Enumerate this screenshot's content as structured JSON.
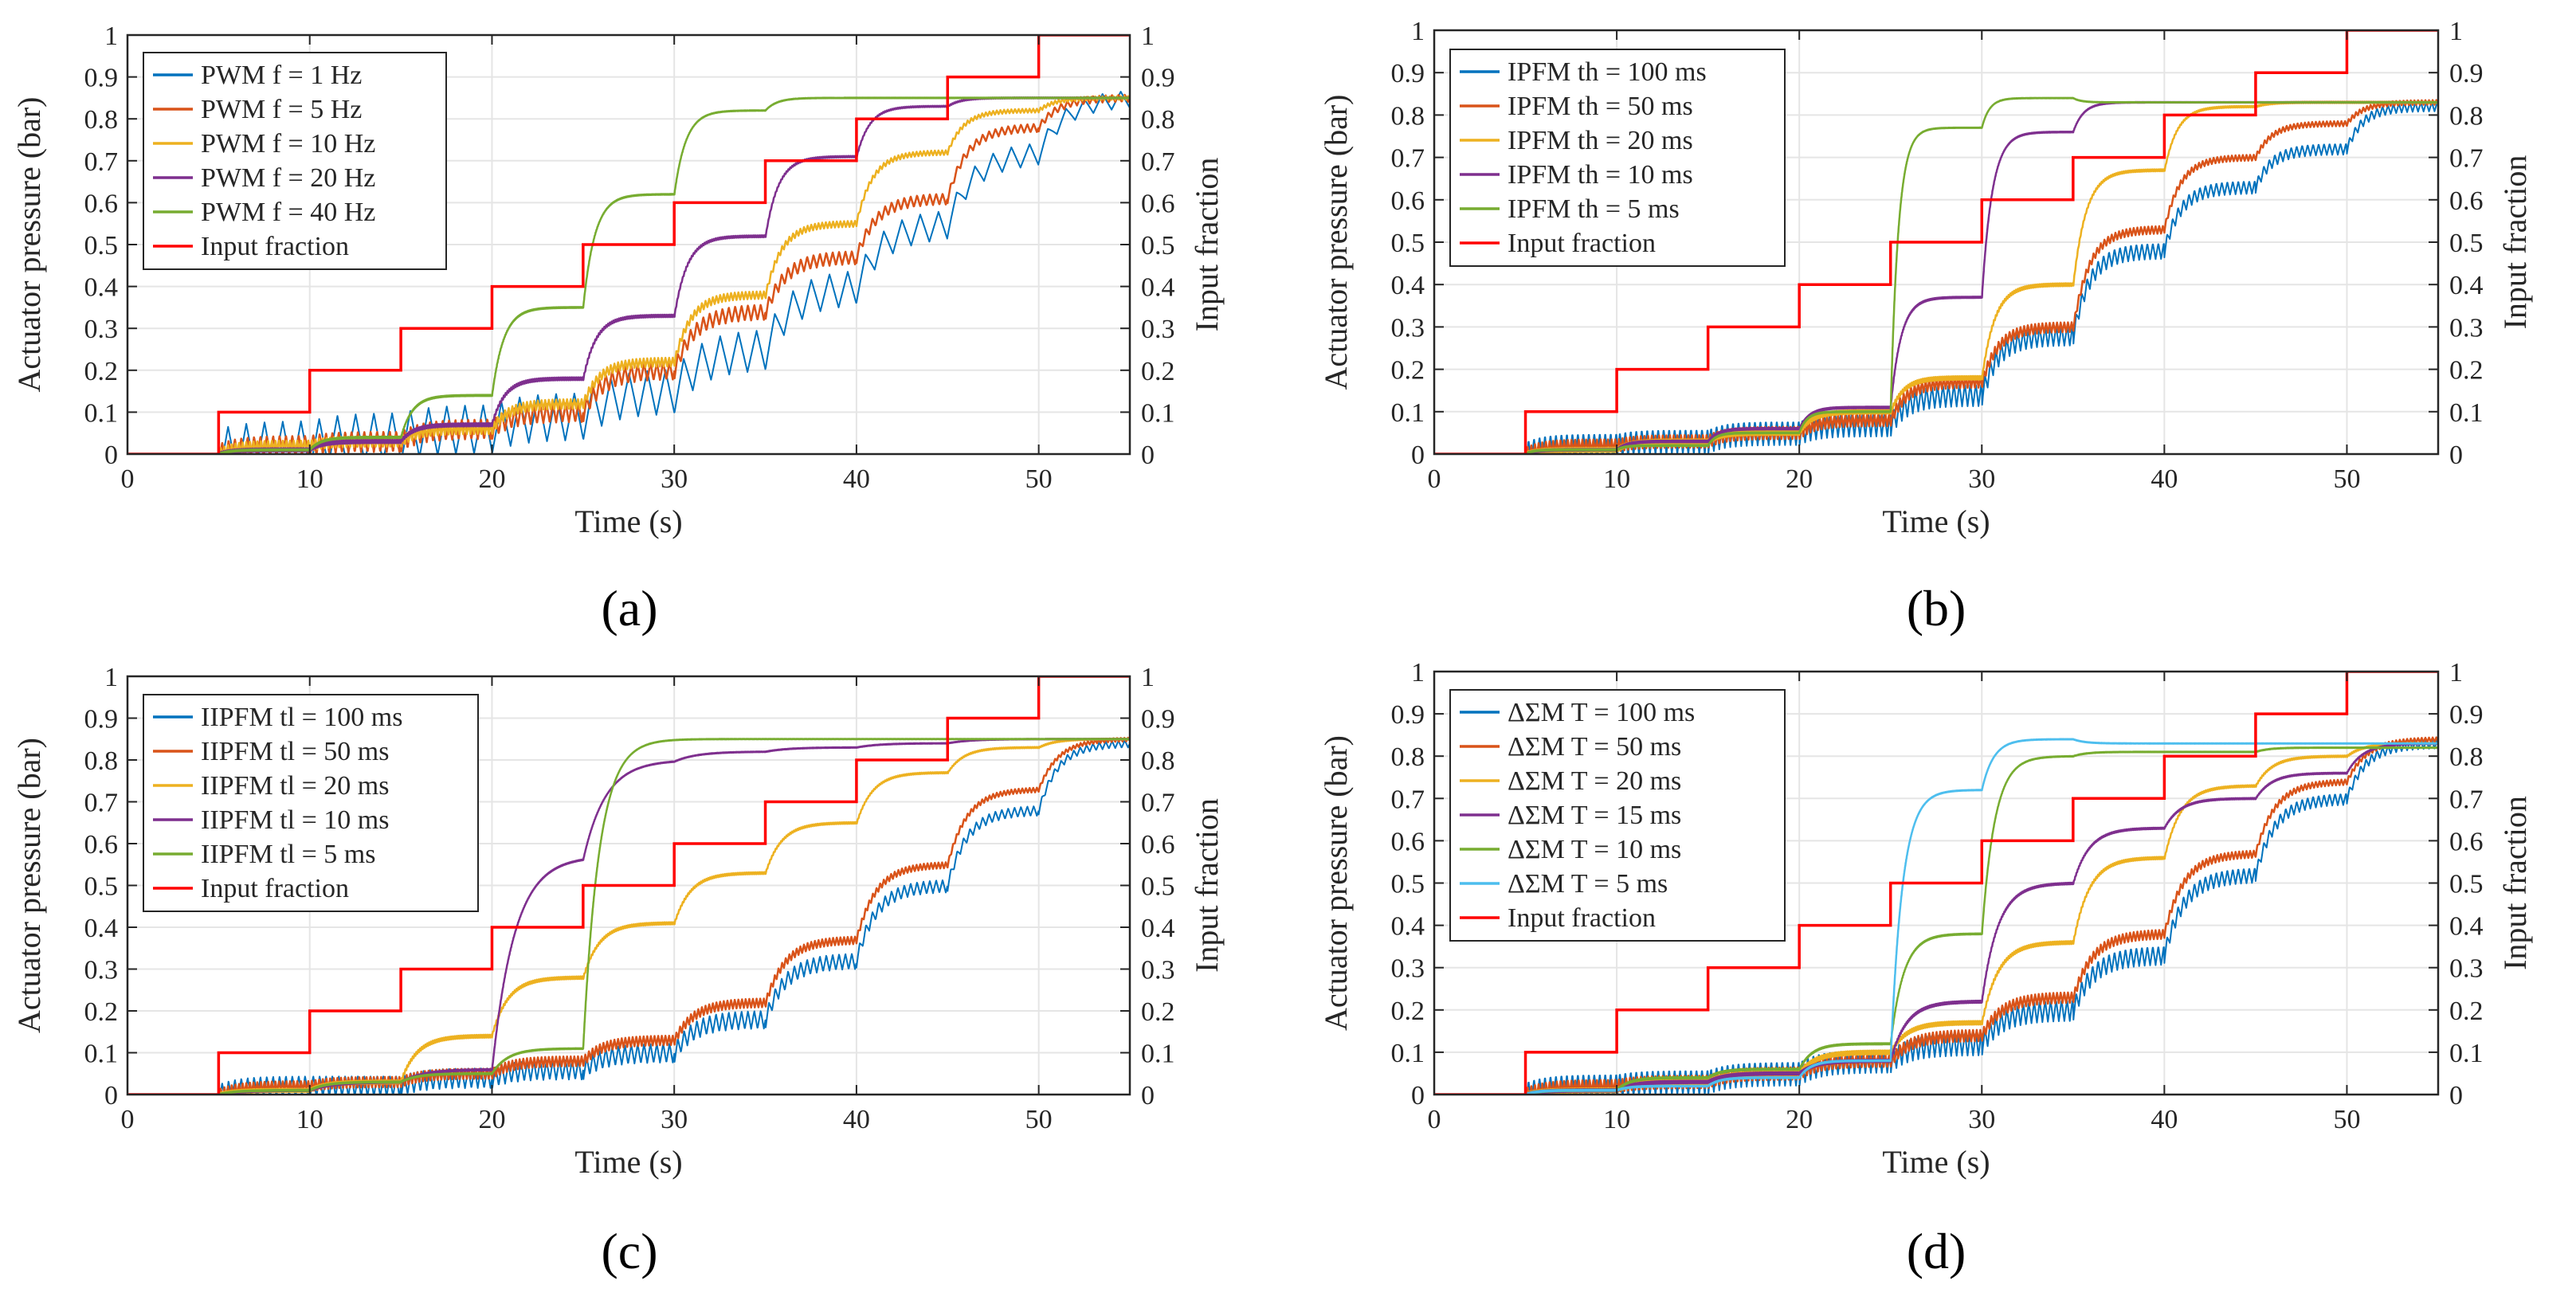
{
  "colors": {
    "blue": "#0072BD",
    "orange": "#D95319",
    "yellow": "#EDB120",
    "purple": "#7E2F8E",
    "green": "#77AC30",
    "cyan": "#4DBEEE",
    "red": "#FF0000",
    "grid": "#E5E5E5",
    "axis": "#262626"
  },
  "chart_data": [
    {
      "type": "line",
      "panel": "a",
      "panel_label": "(a)",
      "xlabel": "Time (s)",
      "ylabel": "Actuator pressure (bar)",
      "y2label": "Input fraction",
      "xlim": [
        0,
        55
      ],
      "ylim": [
        0,
        1
      ],
      "y2lim": [
        0,
        1
      ],
      "xticks": [
        "0",
        "10",
        "20",
        "30",
        "40",
        "50"
      ],
      "yticks": [
        "0",
        "0.1",
        "0.2",
        "0.3",
        "0.4",
        "0.5",
        "0.6",
        "0.7",
        "0.8",
        "0.9",
        "1"
      ],
      "input_steps": [
        0,
        0.1,
        0.2,
        0.3,
        0.4,
        0.5,
        0.6,
        0.7,
        0.8,
        0.9,
        1.0
      ],
      "step_times": [
        5,
        10,
        15,
        20,
        25,
        30,
        35,
        40,
        45,
        50
      ],
      "series": [
        {
          "name": "PWM f =  1 Hz",
          "color": "blue",
          "tau": 4.0,
          "levels": [
            0.02,
            0.04,
            0.06,
            0.09,
            0.15,
            0.25,
            0.4,
            0.55,
            0.72,
            0.85
          ],
          "ripple": 0.12,
          "period": 1.0
        },
        {
          "name": "PWM f =  5 Hz",
          "color": "orange",
          "tau": 3.0,
          "levels": [
            0.02,
            0.03,
            0.06,
            0.1,
            0.2,
            0.34,
            0.47,
            0.61,
            0.78,
            0.85
          ],
          "ripple": 0.05,
          "period": 0.35
        },
        {
          "name": "PWM f = 10 Hz",
          "color": "yellow",
          "tau": 2.5,
          "levels": [
            0.02,
            0.03,
            0.06,
            0.12,
            0.22,
            0.38,
            0.55,
            0.72,
            0.82,
            0.85
          ],
          "ripple": 0.025,
          "period": 0.2
        },
        {
          "name": "PWM f = 20 Hz",
          "color": "purple",
          "tau": 2.0,
          "levels": [
            0.01,
            0.03,
            0.07,
            0.18,
            0.33,
            0.52,
            0.71,
            0.83,
            0.85,
            0.85
          ],
          "ripple": 0.008,
          "period": 0.1
        },
        {
          "name": "PWM f = 40 Hz",
          "color": "green",
          "tau": 1.8,
          "levels": [
            0.01,
            0.04,
            0.14,
            0.35,
            0.62,
            0.82,
            0.85,
            0.85,
            0.85,
            0.85
          ],
          "ripple": 0.003,
          "period": 0.05
        }
      ],
      "input_label": "Input fraction"
    },
    {
      "type": "line",
      "panel": "b",
      "panel_label": "(b)",
      "xlabel": "Time (s)",
      "ylabel": "Actuator pressure (bar)",
      "y2label": "Input fraction",
      "xlim": [
        0,
        55
      ],
      "ylim": [
        0,
        1
      ],
      "y2lim": [
        0,
        1
      ],
      "xticks": [
        "0",
        "10",
        "20",
        "30",
        "40",
        "50"
      ],
      "yticks": [
        "0",
        "0.1",
        "0.2",
        "0.3",
        "0.4",
        "0.5",
        "0.6",
        "0.7",
        "0.8",
        "0.9",
        "1"
      ],
      "input_steps": [
        0,
        0.1,
        0.2,
        0.3,
        0.4,
        0.5,
        0.6,
        0.7,
        0.8,
        0.9,
        1.0
      ],
      "step_times": [
        5,
        10,
        15,
        20,
        25,
        30,
        35,
        40,
        45,
        50
      ],
      "series": [
        {
          "name": "IPFM th = 100 ms",
          "color": "blue",
          "tau": 2.5,
          "levels": [
            0.02,
            0.03,
            0.05,
            0.07,
            0.14,
            0.28,
            0.48,
            0.63,
            0.72,
            0.82
          ],
          "ripple": 0.06,
          "period": 0.3
        },
        {
          "name": "IPFM th =  50 ms",
          "color": "orange",
          "tau": 2.5,
          "levels": [
            0.02,
            0.03,
            0.05,
            0.08,
            0.17,
            0.3,
            0.53,
            0.7,
            0.78,
            0.83
          ],
          "ripple": 0.03,
          "period": 0.2
        },
        {
          "name": "IPFM th =  20 ms",
          "color": "yellow",
          "tau": 2.0,
          "levels": [
            0.01,
            0.03,
            0.05,
            0.1,
            0.18,
            0.4,
            0.67,
            0.82,
            0.83,
            0.83
          ],
          "ripple": 0.01,
          "period": 0.1
        },
        {
          "name": "IPFM th =  10 ms",
          "color": "purple",
          "tau": 1.6,
          "levels": [
            0.01,
            0.03,
            0.06,
            0.11,
            0.37,
            0.76,
            0.83,
            0.83,
            0.83,
            0.83
          ],
          "ripple": 0.004,
          "period": 0.05
        },
        {
          "name": "IPFM th =   5 ms",
          "color": "green",
          "tau": 1.2,
          "levels": [
            0.01,
            0.02,
            0.05,
            0.1,
            0.77,
            0.84,
            0.83,
            0.83,
            0.83,
            0.83
          ],
          "ripple": 0.002,
          "period": 0.03
        }
      ],
      "input_label": "Input fraction"
    },
    {
      "type": "line",
      "panel": "c",
      "panel_label": "(c)",
      "xlabel": "Time (s)",
      "ylabel": "Actuator pressure (bar)",
      "y2label": "Input fraction",
      "xlim": [
        0,
        55
      ],
      "ylim": [
        0,
        1
      ],
      "y2lim": [
        0,
        1
      ],
      "xticks": [
        "0",
        "10",
        "20",
        "30",
        "40",
        "50"
      ],
      "yticks": [
        "0",
        "0.1",
        "0.2",
        "0.3",
        "0.4",
        "0.5",
        "0.6",
        "0.7",
        "0.8",
        "0.9",
        "1"
      ],
      "input_steps": [
        0,
        0.1,
        0.2,
        0.3,
        0.4,
        0.5,
        0.6,
        0.7,
        0.8,
        0.9,
        1.0
      ],
      "step_times": [
        5,
        10,
        15,
        20,
        25,
        30,
        35,
        40,
        45,
        50
      ],
      "series": [
        {
          "name": "IIPFM tl = 100 ms",
          "color": "blue",
          "tau": 3.0,
          "levels": [
            0.02,
            0.02,
            0.04,
            0.06,
            0.1,
            0.18,
            0.32,
            0.5,
            0.68,
            0.84
          ],
          "ripple": 0.05,
          "period": 0.35
        },
        {
          "name": "IIPFM tl =  50 ms",
          "color": "orange",
          "tau": 3.0,
          "levels": [
            0.02,
            0.03,
            0.05,
            0.08,
            0.13,
            0.22,
            0.37,
            0.55,
            0.73,
            0.85
          ],
          "ripple": 0.025,
          "period": 0.2
        },
        {
          "name": "IIPFM tl =  20 ms",
          "color": "yellow",
          "tau": 2.5,
          "levels": [
            0.01,
            0.03,
            0.14,
            0.28,
            0.41,
            0.53,
            0.65,
            0.77,
            0.83,
            0.85
          ],
          "ripple": 0.008,
          "period": 0.1
        },
        {
          "name": "IIPFM tl =  10 ms",
          "color": "purple",
          "tau": 3.5,
          "levels": [
            0.01,
            0.03,
            0.06,
            0.57,
            0.8,
            0.82,
            0.83,
            0.84,
            0.85,
            0.85
          ],
          "ripple": 0.003,
          "period": 0.05
        },
        {
          "name": "IIPFM tl =   5 ms",
          "color": "green",
          "tau": 2.5,
          "levels": [
            0.01,
            0.03,
            0.05,
            0.11,
            0.85,
            0.85,
            0.85,
            0.85,
            0.85,
            0.85
          ],
          "ripple": 0.002,
          "period": 0.03
        }
      ],
      "input_label": "Input fraction"
    },
    {
      "type": "line",
      "panel": "d",
      "panel_label": "(d)",
      "xlabel": "Time (s)",
      "ylabel": "Actuator pressure (bar)",
      "y2label": "Input fraction",
      "xlim": [
        0,
        55
      ],
      "ylim": [
        0,
        1
      ],
      "y2lim": [
        0,
        1
      ],
      "xticks": [
        "0",
        "10",
        "20",
        "30",
        "40",
        "50"
      ],
      "yticks": [
        "0",
        "0.1",
        "0.2",
        "0.3",
        "0.4",
        "0.5",
        "0.6",
        "0.7",
        "0.8",
        "0.9",
        "1"
      ],
      "input_steps": [
        0,
        0.1,
        0.2,
        0.3,
        0.4,
        0.5,
        0.6,
        0.7,
        0.8,
        0.9,
        1.0
      ],
      "step_times": [
        5,
        10,
        15,
        20,
        25,
        30,
        35,
        40,
        45,
        50
      ],
      "series": [
        {
          "name": "ΔΣM T = 100 ms",
          "color": "blue",
          "tau": 3.0,
          "levels": [
            0.02,
            0.03,
            0.05,
            0.08,
            0.12,
            0.2,
            0.33,
            0.52,
            0.7,
            0.83
          ],
          "ripple": 0.06,
          "period": 0.3
        },
        {
          "name": "ΔΣM T =  50 ms",
          "color": "orange",
          "tau": 3.0,
          "levels": [
            0.02,
            0.03,
            0.05,
            0.08,
            0.14,
            0.23,
            0.38,
            0.57,
            0.74,
            0.84
          ],
          "ripple": 0.03,
          "period": 0.2
        },
        {
          "name": "ΔΣM T =  20 ms",
          "color": "yellow",
          "tau": 2.5,
          "levels": [
            0.01,
            0.03,
            0.05,
            0.1,
            0.17,
            0.36,
            0.56,
            0.73,
            0.8,
            0.83
          ],
          "ripple": 0.01,
          "period": 0.1
        },
        {
          "name": "ΔΣM T =  15 ms",
          "color": "purple",
          "tau": 2.5,
          "levels": [
            0.01,
            0.03,
            0.05,
            0.08,
            0.22,
            0.5,
            0.63,
            0.7,
            0.76,
            0.83
          ],
          "ripple": 0.006,
          "period": 0.07
        },
        {
          "name": "ΔΣM T =  10 ms",
          "color": "green",
          "tau": 2.0,
          "levels": [
            0.01,
            0.04,
            0.06,
            0.12,
            0.38,
            0.8,
            0.81,
            0.81,
            0.82,
            0.82
          ],
          "ripple": 0.003,
          "period": 0.05
        },
        {
          "name": "ΔΣM T =   5 ms",
          "color": "cyan",
          "tau": 1.8,
          "levels": [
            0.01,
            0.02,
            0.04,
            0.08,
            0.72,
            0.84,
            0.83,
            0.83,
            0.83,
            0.83
          ],
          "ripple": 0.002,
          "period": 0.03
        }
      ],
      "input_label": "Input fraction"
    }
  ]
}
